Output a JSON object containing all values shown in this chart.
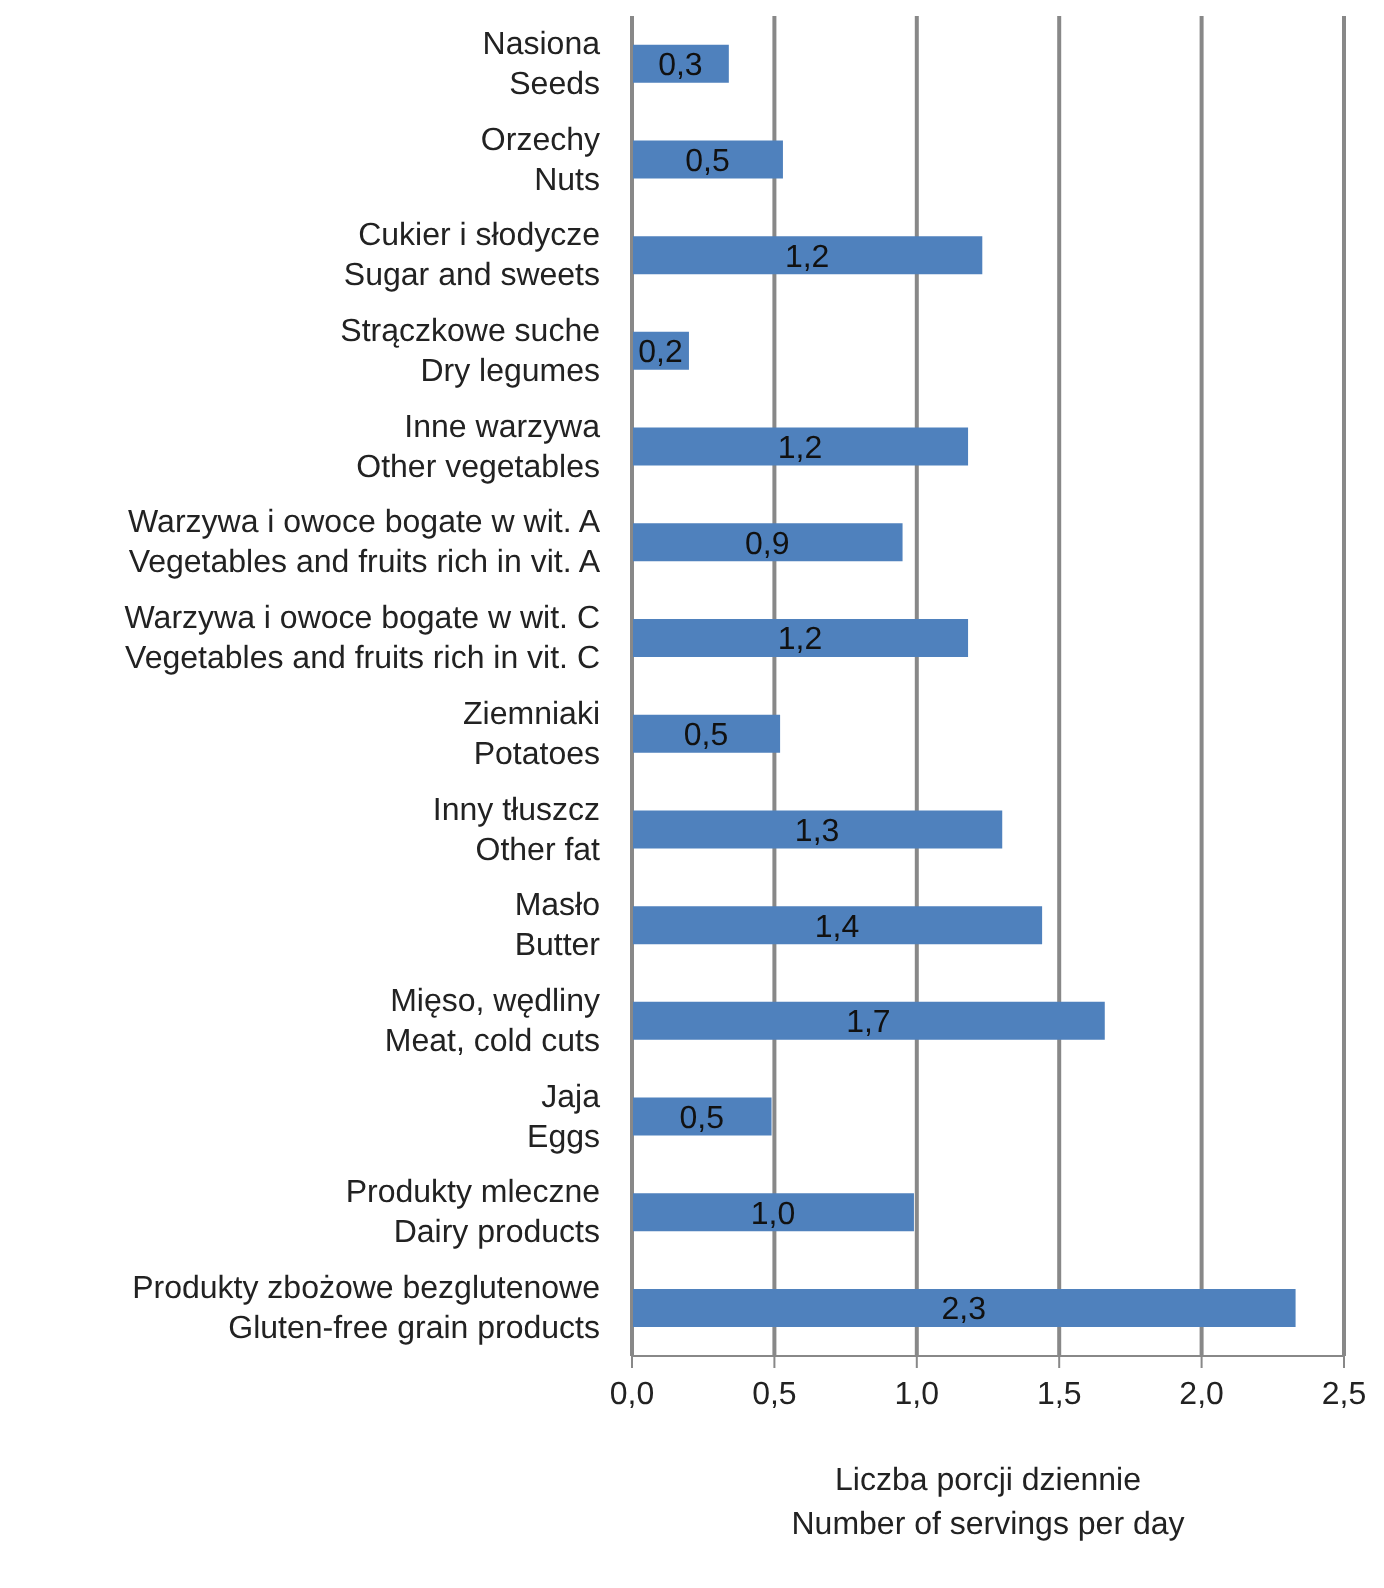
{
  "chart_data": {
    "type": "bar",
    "orientation": "horizontal",
    "categories": [
      "Nasiona\nSeeds",
      "Orzechy\nNuts",
      "Cukier i słodycze\nSugar and sweets",
      "Strączkowe suche\nDry legumes",
      "Inne warzywa\nOther vegetables",
      "Warzywa i owoce bogate w wit. A\nVegetables and fruits rich in vit. A",
      "Warzywa i owoce bogate w wit. C\nVegetables and fruits rich in vit. C",
      "Ziemniaki\nPotatoes",
      "Inny tłuszcz\nOther fat",
      "Masło\nButter",
      "Mięso, wędliny\nMeat, cold cuts",
      "Jaja\nEggs",
      "Produkty mleczne\nDairy products",
      "Produkty zbożowe bezglutenowe\nGluten-free grain products"
    ],
    "values": [
      0.34,
      0.53,
      1.23,
      0.2,
      1.18,
      0.95,
      1.18,
      0.52,
      1.3,
      1.44,
      1.66,
      0.49,
      0.99,
      2.33
    ],
    "value_labels": [
      "0,3",
      "0,5",
      "1,2",
      "0,2",
      "1,2",
      "0,9",
      "1,2",
      "0,5",
      "1,3",
      "1,4",
      "1,7",
      "0,5",
      "1,0",
      "2,3"
    ],
    "color": "#4f81bd",
    "xlim": [
      0,
      2.5
    ],
    "xticks": [
      {
        "value": 0,
        "label": "0,0"
      },
      {
        "value": 0.5,
        "label": "0,5"
      },
      {
        "value": 1,
        "label": "1,0"
      },
      {
        "value": 1.5,
        "label": "1,5"
      },
      {
        "value": 2,
        "label": "2,0"
      },
      {
        "value": 2.5,
        "label": "2,5"
      }
    ],
    "xlabel": "Liczba porcji dziennie\nNumber of servings per day",
    "grid": "x"
  }
}
